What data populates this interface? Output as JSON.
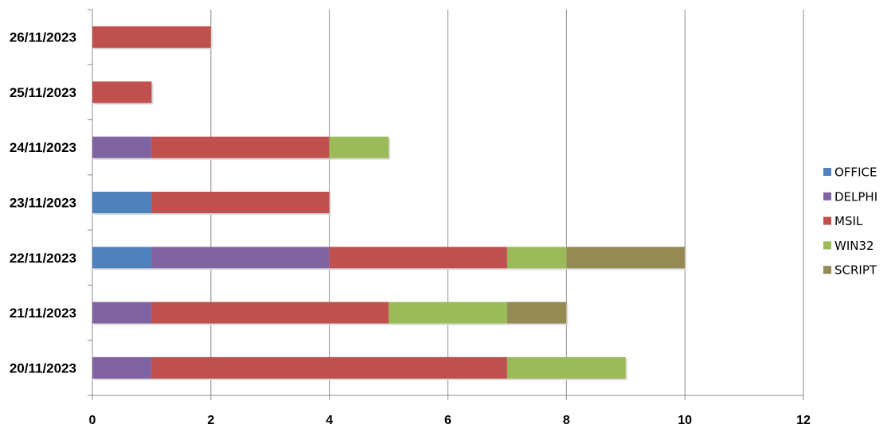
{
  "chart_data": {
    "type": "bar",
    "orientation": "horizontal",
    "stacked": true,
    "categories": [
      "20/11/2023",
      "21/11/2023",
      "22/11/2023",
      "23/11/2023",
      "24/11/2023",
      "25/11/2023",
      "26/11/2023"
    ],
    "series": [
      {
        "name": "OFFICE",
        "color": "#4F81BD",
        "values": [
          0,
          0,
          1,
          1,
          0,
          0,
          0
        ]
      },
      {
        "name": "DELPHI",
        "color": "#8064A2",
        "values": [
          1,
          1,
          3,
          0,
          1,
          0,
          0
        ]
      },
      {
        "name": "MSIL",
        "color": "#C0504D",
        "values": [
          6,
          4,
          3,
          3,
          3,
          1,
          2
        ]
      },
      {
        "name": "WIN32",
        "color": "#9BBB59",
        "values": [
          2,
          2,
          1,
          0,
          1,
          0,
          0
        ]
      },
      {
        "name": "SCRIPT",
        "color": "#948A54",
        "values": [
          0,
          1,
          2,
          0,
          0,
          0,
          0
        ]
      }
    ],
    "xlim": [
      0,
      12
    ],
    "xticks": [
      "0",
      "2",
      "4",
      "6",
      "8",
      "10",
      "12"
    ],
    "grid": true,
    "legend": "right",
    "title": "",
    "xlabel": "",
    "ylabel": ""
  }
}
